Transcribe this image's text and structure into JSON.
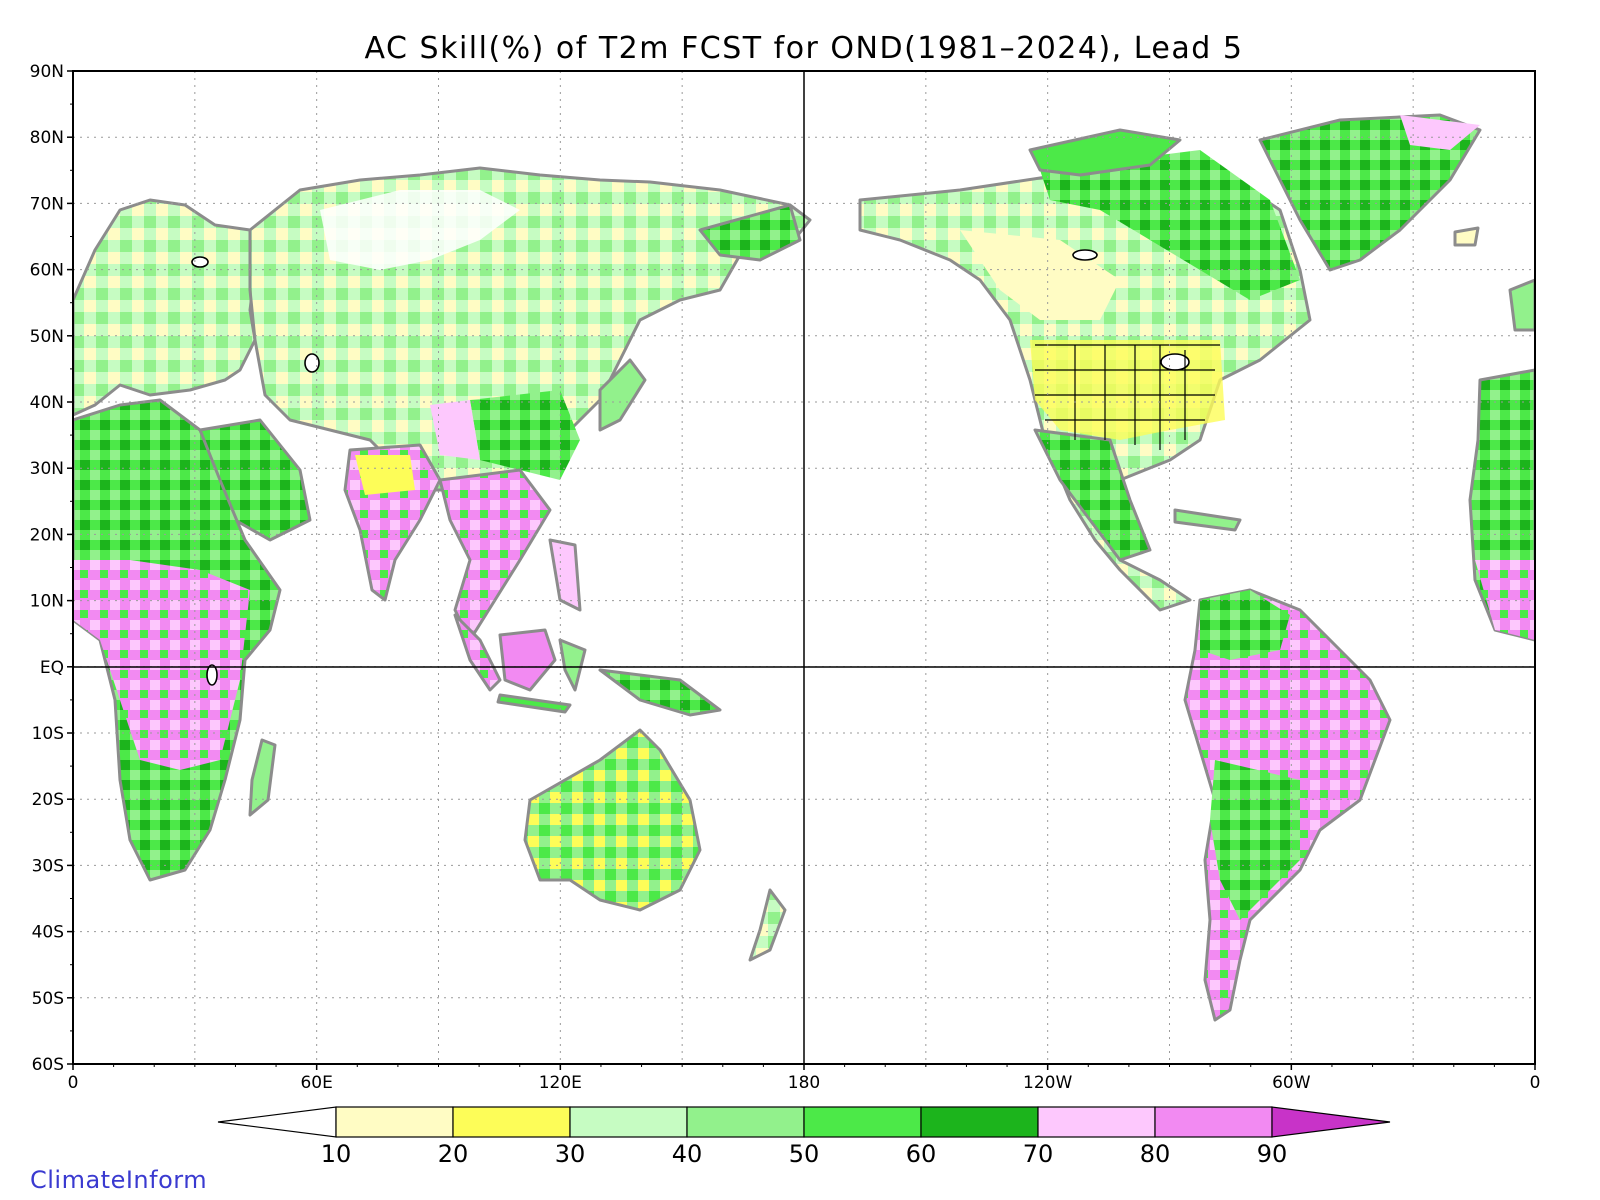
{
  "title": "AC Skill(%) of T2m FCST for OND(1981–2024), Lead 5",
  "brand": "ClimateInform",
  "y_axis_labels": [
    "90N",
    "80N",
    "70N",
    "60N",
    "50N",
    "40N",
    "30N",
    "20N",
    "10N",
    "EQ",
    "10S",
    "20S",
    "30S",
    "40S",
    "50S",
    "60S"
  ],
  "x_axis_labels": [
    "0",
    "60E",
    "120E",
    "180",
    "120W",
    "60W",
    "0"
  ],
  "colorbar": {
    "labels": [
      "10",
      "20",
      "30",
      "40",
      "50",
      "60",
      "70",
      "80",
      "90"
    ],
    "colors": [
      "#ffffff",
      "#fffcc4",
      "#fdfd58",
      "#c6fcc2",
      "#92f18c",
      "#4ce948",
      "#1cb41c",
      "#fdc8fd",
      "#f28af2",
      "#c833c8"
    ]
  },
  "colors": {
    "land_outline": "#8c8c8c",
    "brand": "#3a3ad0"
  }
}
